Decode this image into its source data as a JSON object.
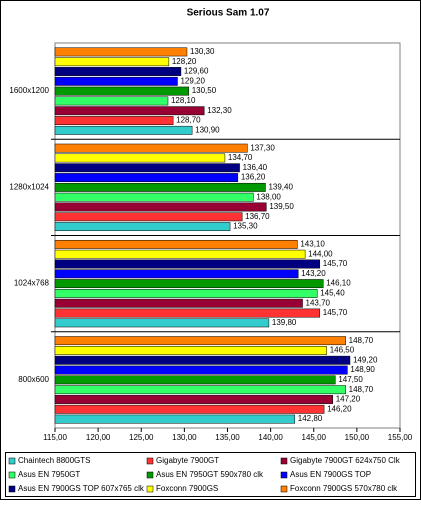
{
  "chart_data": {
    "type": "hbar",
    "title": "Serious Sam 1.07",
    "categories": [
      "1600x1200",
      "1280x1024",
      "1024x768",
      "800x600"
    ],
    "xlim": [
      115,
      155
    ],
    "xticks": [
      {
        "value": 115,
        "label": "115,00"
      },
      {
        "value": 120,
        "label": "120,00"
      },
      {
        "value": 125,
        "label": "125,00"
      },
      {
        "value": 130,
        "label": "130,00"
      },
      {
        "value": 135,
        "label": "135,00"
      },
      {
        "value": 140,
        "label": "140,00"
      },
      {
        "value": 145,
        "label": "145,00"
      },
      {
        "value": 150,
        "label": "150,00"
      },
      {
        "value": 155,
        "label": "155,00"
      }
    ],
    "series": [
      {
        "name": "Chaintech 8800GTS",
        "color": "#33cccc",
        "values": [
          130.9,
          135.3,
          139.8,
          142.8
        ],
        "value_labels": [
          "130,90",
          "135,30",
          "139,80",
          "142,80"
        ]
      },
      {
        "name": "Gigabyte 7900GT",
        "color": "#ff3333",
        "values": [
          128.7,
          136.7,
          145.7,
          146.2
        ],
        "value_labels": [
          "128,70",
          "136,70",
          "145,70",
          "146,20"
        ]
      },
      {
        "name": "Gigabyte 7900GT 624x750 Clk",
        "color": "#990033",
        "values": [
          132.3,
          139.5,
          143.7,
          147.2
        ],
        "value_labels": [
          "132,30",
          "139,50",
          "143,70",
          "147,20"
        ]
      },
      {
        "name": "Asus EN 7950GT",
        "color": "#33ff66",
        "values": [
          128.1,
          138.0,
          145.4,
          148.7
        ],
        "value_labels": [
          "128,10",
          "138,00",
          "145,40",
          "148,70"
        ]
      },
      {
        "name": "Asus EN 7950GT 590x780 clk",
        "color": "#009900",
        "values": [
          130.5,
          139.4,
          146.1,
          147.5
        ],
        "value_labels": [
          "130,50",
          "139,40",
          "146,10",
          "147,50"
        ]
      },
      {
        "name": "Asus EN 7900GS TOP",
        "color": "#0000ff",
        "values": [
          129.2,
          136.2,
          143.2,
          148.9
        ],
        "value_labels": [
          "129,20",
          "136,20",
          "143,20",
          "148,90"
        ]
      },
      {
        "name": "Asus EN 7900GS TOP 607x765 clk",
        "color": "#000080",
        "values": [
          129.6,
          136.4,
          145.7,
          149.2
        ],
        "value_labels": [
          "129,60",
          "136,40",
          "145,70",
          "149,20"
        ]
      },
      {
        "name": "Foxconn 7900GS",
        "color": "#ffff00",
        "values": [
          128.2,
          134.7,
          144.0,
          146.5
        ],
        "value_labels": [
          "128,20",
          "134,70",
          "144,00",
          "146,50"
        ]
      },
      {
        "name": "Foxconn 7900GS 570x780 clk",
        "color": "#ff8000",
        "values": [
          130.3,
          137.3,
          143.1,
          148.7
        ],
        "value_labels": [
          "130,30",
          "137,30",
          "143,10",
          "148,70"
        ]
      }
    ]
  }
}
